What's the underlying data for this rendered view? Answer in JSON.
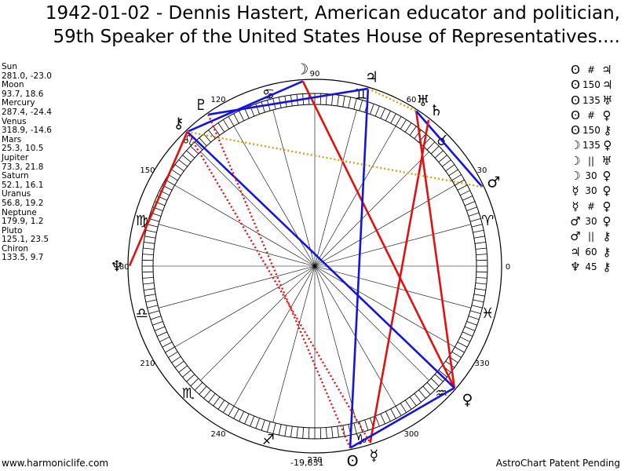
{
  "title_line1": "1942-01-02 - Dennis Hastert, American educator and politician,",
  "title_line2": "59th Speaker of the United States House of Representatives....",
  "planets": [
    {
      "name": "Sun",
      "glyph": "ʘ",
      "coords": "281.0, -23.0"
    },
    {
      "name": "Moon",
      "glyph": "☽",
      "coords": "93.7, 18.6"
    },
    {
      "name": "Mercury",
      "glyph": "☿",
      "coords": "287.4, -24.4"
    },
    {
      "name": "Venus",
      "glyph": "♀",
      "coords": "318.9, -14.6"
    },
    {
      "name": "Mars",
      "glyph": "♂",
      "coords": "25.3, 10.5"
    },
    {
      "name": "Jupiter",
      "glyph": "♃",
      "coords": "73.3, 21.8"
    },
    {
      "name": "Saturn",
      "glyph": "♄",
      "coords": "52.1, 16.1"
    },
    {
      "name": "Uranus",
      "glyph": "♅",
      "coords": "56.8, 19.2"
    },
    {
      "name": "Neptune",
      "glyph": "♆",
      "coords": "179.9, 1.2"
    },
    {
      "name": "Pluto",
      "glyph": "♇",
      "coords": "125.1, 23.5"
    },
    {
      "name": "Chiron",
      "glyph": "⚷",
      "coords": "133.5, 9.7"
    }
  ],
  "aspects": [
    {
      "p1": "ʘ",
      "mark": "#",
      "p2": "♃"
    },
    {
      "p1": "ʘ",
      "mark": "150",
      "p2": "♃"
    },
    {
      "p1": "ʘ",
      "mark": "135",
      "p2": "♅"
    },
    {
      "p1": "ʘ",
      "mark": "#",
      "p2": "♀"
    },
    {
      "p1": "ʘ",
      "mark": "150",
      "p2": "⚷"
    },
    {
      "p1": "☽",
      "mark": "135",
      "p2": "♀"
    },
    {
      "p1": "☽",
      "mark": "||",
      "p2": "♅"
    },
    {
      "p1": "☽",
      "mark": "30",
      "p2": "♀"
    },
    {
      "p1": "☿",
      "mark": "30",
      "p2": "♀"
    },
    {
      "p1": "☿",
      "mark": "#",
      "p2": "♀"
    },
    {
      "p1": "♂",
      "mark": "30",
      "p2": "♀"
    },
    {
      "p1": "♂",
      "mark": "||",
      "p2": "⚷"
    },
    {
      "p1": "♃",
      "mark": "60",
      "p2": "⚷"
    },
    {
      "p1": "♆",
      "mark": "45",
      "p2": "⚷"
    }
  ],
  "degree_labels": [
    "0",
    "30",
    "60",
    "90",
    "120",
    "150",
    "180",
    "210",
    "240",
    "270",
    "300",
    "330"
  ],
  "zodiac": [
    {
      "name": "Aries",
      "glyph": "♈",
      "lon": 15
    },
    {
      "name": "Taurus",
      "glyph": "♉",
      "lon": 45
    },
    {
      "name": "Gemini",
      "glyph": "♊",
      "lon": 75
    },
    {
      "name": "Cancer",
      "glyph": "♋",
      "lon": 105
    },
    {
      "name": "Leo",
      "glyph": "♌",
      "lon": 135
    },
    {
      "name": "Virgo",
      "glyph": "♍",
      "lon": 165
    },
    {
      "name": "Libra",
      "glyph": "♎",
      "lon": 195
    },
    {
      "name": "Scorpio",
      "glyph": "♏",
      "lon": 225
    },
    {
      "name": "Sagittarius",
      "glyph": "♐",
      "lon": 255
    },
    {
      "name": "Capricorn",
      "glyph": "♑",
      "lon": 285
    },
    {
      "name": "Aquarius",
      "glyph": "♒",
      "lon": 315
    },
    {
      "name": "Pisces",
      "glyph": "♓",
      "lon": 345
    }
  ],
  "colors": {
    "red": "#e01010",
    "blue": "#1414e0",
    "gold": "#d4a017"
  },
  "footer_left": "www.harmoniclife.com",
  "footer_mid": "-19,831",
  "footer_right": "AstroChart Patent Pending"
}
